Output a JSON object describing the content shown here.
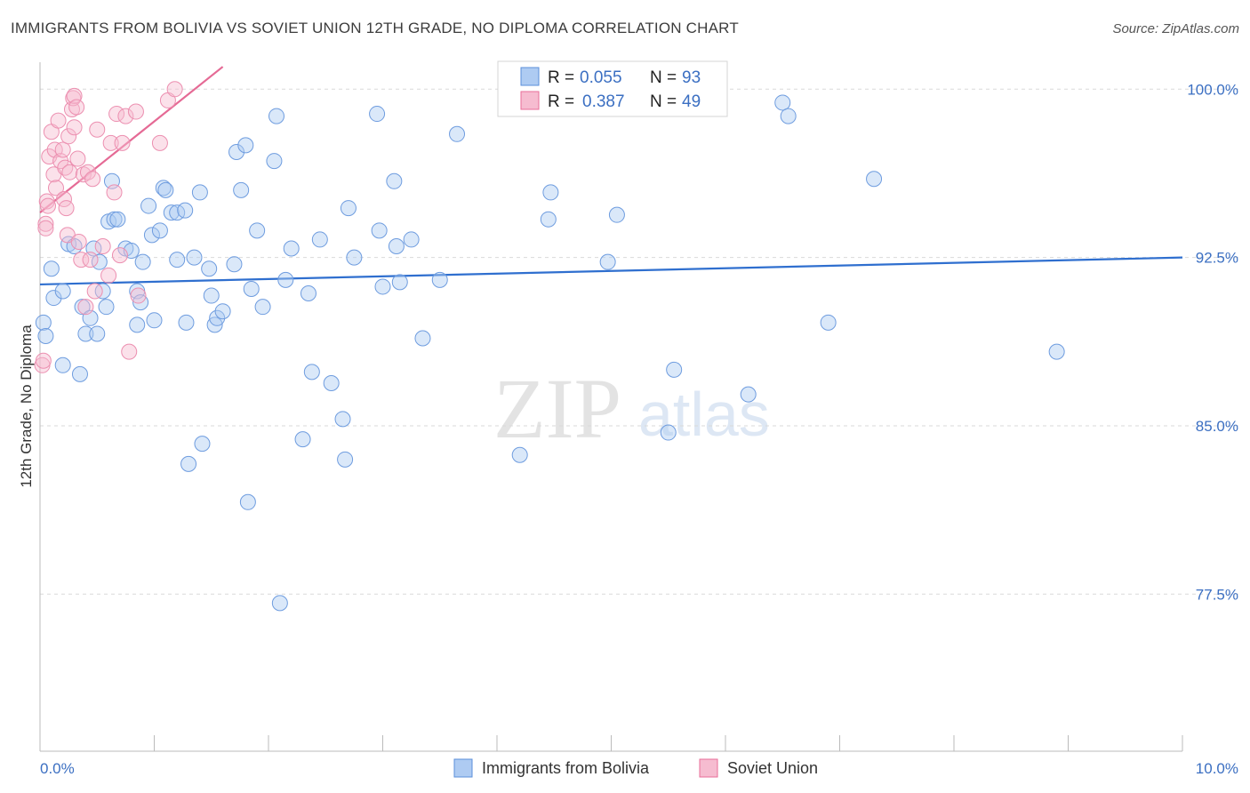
{
  "title": "IMMIGRANTS FROM BOLIVIA VS SOVIET UNION 12TH GRADE, NO DIPLOMA CORRELATION CHART",
  "source": "Source: ZipAtlas.com",
  "watermark": {
    "zip": "ZIP",
    "atlas": "atlas"
  },
  "legend_box": {
    "rows": [
      {
        "r_label": "R = ",
        "r_value": "0.055",
        "n_label": "N = ",
        "n_value": "93"
      },
      {
        "r_label": "R = ",
        "r_value": "0.387",
        "n_label": "N = ",
        "n_value": "49"
      }
    ]
  },
  "bottom_legend": [
    "Immigrants from Bolivia",
    "Soviet Union"
  ],
  "colors": {
    "blue": "#5b8fdb",
    "blue_fill": "#aecbf2",
    "pink": "#e86e98",
    "pink_fill": "#f6bcd0",
    "accent": "#3b6fc2"
  },
  "chart_data": {
    "type": "scatter",
    "title": "IMMIGRANTS FROM BOLIVIA VS SOVIET UNION 12TH GRADE, NO DIPLOMA CORRELATION CHART",
    "xlabel": "",
    "ylabel": "12th Grade, No Diploma",
    "xlim": [
      0,
      10
    ],
    "ylim": [
      70.5,
      101.2
    ],
    "x_tick_labels": [
      "0.0%",
      "10.0%"
    ],
    "y_ticks": [
      100,
      92.5,
      85,
      77.5
    ],
    "y_tick_labels": [
      "100.0%",
      "92.5%",
      "85.0%",
      "77.5%"
    ],
    "grid": true,
    "series": [
      {
        "name": "Immigrants from Bolivia",
        "color": "#5b8fdb",
        "trend": {
          "x": [
            0,
            10
          ],
          "y": [
            91.3,
            92.5
          ]
        },
        "points": [
          [
            0.03,
            89.6
          ],
          [
            0.05,
            89.0
          ],
          [
            0.1,
            92.0
          ],
          [
            0.12,
            90.7
          ],
          [
            0.2,
            91.0
          ],
          [
            0.2,
            87.7
          ],
          [
            0.25,
            93.1
          ],
          [
            0.3,
            93.0
          ],
          [
            0.35,
            87.3
          ],
          [
            0.37,
            90.3
          ],
          [
            0.4,
            89.1
          ],
          [
            0.44,
            89.8
          ],
          [
            0.47,
            92.9
          ],
          [
            0.5,
            89.1
          ],
          [
            0.52,
            92.3
          ],
          [
            0.58,
            90.3
          ],
          [
            0.6,
            94.1
          ],
          [
            0.63,
            95.9
          ],
          [
            0.65,
            94.2
          ],
          [
            0.68,
            94.2
          ],
          [
            0.75,
            92.9
          ],
          [
            0.8,
            92.8
          ],
          [
            0.85,
            89.5
          ],
          [
            0.85,
            91.0
          ],
          [
            0.88,
            90.5
          ],
          [
            0.9,
            92.3
          ],
          [
            0.95,
            94.8
          ],
          [
            0.98,
            93.5
          ],
          [
            1.0,
            89.7
          ],
          [
            1.05,
            93.7
          ],
          [
            1.08,
            95.6
          ],
          [
            1.1,
            95.5
          ],
          [
            1.15,
            94.5
          ],
          [
            1.2,
            94.5
          ],
          [
            1.2,
            92.4
          ],
          [
            1.27,
            94.6
          ],
          [
            1.28,
            89.6
          ],
          [
            1.3,
            83.3
          ],
          [
            1.35,
            92.5
          ],
          [
            1.4,
            95.4
          ],
          [
            1.42,
            84.2
          ],
          [
            1.48,
            92.0
          ],
          [
            1.5,
            90.8
          ],
          [
            1.53,
            89.5
          ],
          [
            1.55,
            89.8
          ],
          [
            1.6,
            90.1
          ],
          [
            1.7,
            92.2
          ],
          [
            1.72,
            97.2
          ],
          [
            1.76,
            95.5
          ],
          [
            1.8,
            97.5
          ],
          [
            1.82,
            81.6
          ],
          [
            1.85,
            91.1
          ],
          [
            1.9,
            93.7
          ],
          [
            1.95,
            90.3
          ],
          [
            2.05,
            96.8
          ],
          [
            2.07,
            98.8
          ],
          [
            2.1,
            77.1
          ],
          [
            2.15,
            91.5
          ],
          [
            2.2,
            92.9
          ],
          [
            2.3,
            84.4
          ],
          [
            2.35,
            90.9
          ],
          [
            2.38,
            87.4
          ],
          [
            2.45,
            93.3
          ],
          [
            2.55,
            86.9
          ],
          [
            2.65,
            85.3
          ],
          [
            2.67,
            83.5
          ],
          [
            2.7,
            94.7
          ],
          [
            2.75,
            92.5
          ],
          [
            2.95,
            98.9
          ],
          [
            2.97,
            93.7
          ],
          [
            3.0,
            91.2
          ],
          [
            3.1,
            95.9
          ],
          [
            3.12,
            93.0
          ],
          [
            3.15,
            91.4
          ],
          [
            3.25,
            93.3
          ],
          [
            3.35,
            88.9
          ],
          [
            3.5,
            91.5
          ],
          [
            3.65,
            98.0
          ],
          [
            4.2,
            83.7
          ],
          [
            4.25,
            99.5
          ],
          [
            4.45,
            94.2
          ],
          [
            4.47,
            95.4
          ],
          [
            4.97,
            92.3
          ],
          [
            5.05,
            94.4
          ],
          [
            5.5,
            84.7
          ],
          [
            5.55,
            87.5
          ],
          [
            6.2,
            86.4
          ],
          [
            6.5,
            99.4
          ],
          [
            6.55,
            98.8
          ],
          [
            6.9,
            89.6
          ],
          [
            7.3,
            96.0
          ],
          [
            8.9,
            88.3
          ],
          [
            0.55,
            91.0
          ]
        ]
      },
      {
        "name": "Soviet Union",
        "color": "#e86e98",
        "trend": {
          "x": [
            0,
            1.6
          ],
          "y": [
            94.5,
            101.0
          ]
        },
        "points": [
          [
            0.02,
            87.7
          ],
          [
            0.03,
            87.9
          ],
          [
            0.05,
            94.0
          ],
          [
            0.05,
            93.8
          ],
          [
            0.06,
            95.0
          ],
          [
            0.07,
            94.8
          ],
          [
            0.08,
            97.0
          ],
          [
            0.1,
            98.1
          ],
          [
            0.12,
            96.2
          ],
          [
            0.13,
            97.3
          ],
          [
            0.14,
            95.6
          ],
          [
            0.16,
            98.6
          ],
          [
            0.18,
            96.8
          ],
          [
            0.2,
            97.3
          ],
          [
            0.21,
            95.1
          ],
          [
            0.22,
            96.5
          ],
          [
            0.23,
            94.7
          ],
          [
            0.24,
            93.5
          ],
          [
            0.25,
            97.9
          ],
          [
            0.26,
            96.3
          ],
          [
            0.28,
            99.1
          ],
          [
            0.29,
            99.6
          ],
          [
            0.3,
            99.7
          ],
          [
            0.3,
            98.3
          ],
          [
            0.32,
            99.2
          ],
          [
            0.33,
            96.9
          ],
          [
            0.34,
            93.2
          ],
          [
            0.36,
            92.4
          ],
          [
            0.38,
            96.2
          ],
          [
            0.4,
            90.3
          ],
          [
            0.42,
            96.3
          ],
          [
            0.44,
            92.4
          ],
          [
            0.46,
            96.0
          ],
          [
            0.48,
            91.0
          ],
          [
            0.5,
            98.2
          ],
          [
            0.55,
            93.0
          ],
          [
            0.6,
            91.7
          ],
          [
            0.62,
            97.6
          ],
          [
            0.65,
            95.4
          ],
          [
            0.67,
            98.9
          ],
          [
            0.7,
            92.6
          ],
          [
            0.72,
            97.6
          ],
          [
            0.75,
            98.8
          ],
          [
            0.78,
            88.3
          ],
          [
            0.84,
            99.0
          ],
          [
            0.86,
            90.8
          ],
          [
            1.05,
            97.6
          ],
          [
            1.12,
            99.5
          ],
          [
            1.18,
            100.0
          ]
        ]
      }
    ]
  }
}
